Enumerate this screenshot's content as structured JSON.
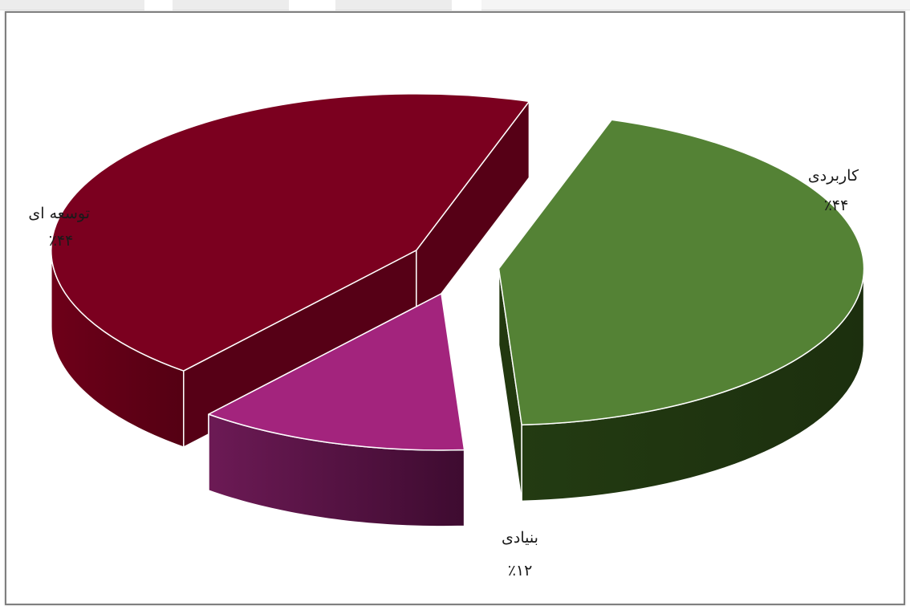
{
  "chart_data": {
    "type": "pie",
    "title": "",
    "slices": [
      {
        "label": "کاربردی",
        "value": 44,
        "value_label": "٪۴۴",
        "color": "#548235",
        "side_color": "#22380f"
      },
      {
        "label": "بنیادی",
        "value": 12,
        "value_label": "٪۱۲",
        "color": "#a3247d",
        "side_color": "#4e0f3b"
      },
      {
        "label": "توسعه ای",
        "value": 44,
        "value_label": "٪۴۴",
        "color": "#7b001f",
        "side_color": "#560016"
      }
    ],
    "style": "3d-exploded",
    "legend": "none"
  }
}
